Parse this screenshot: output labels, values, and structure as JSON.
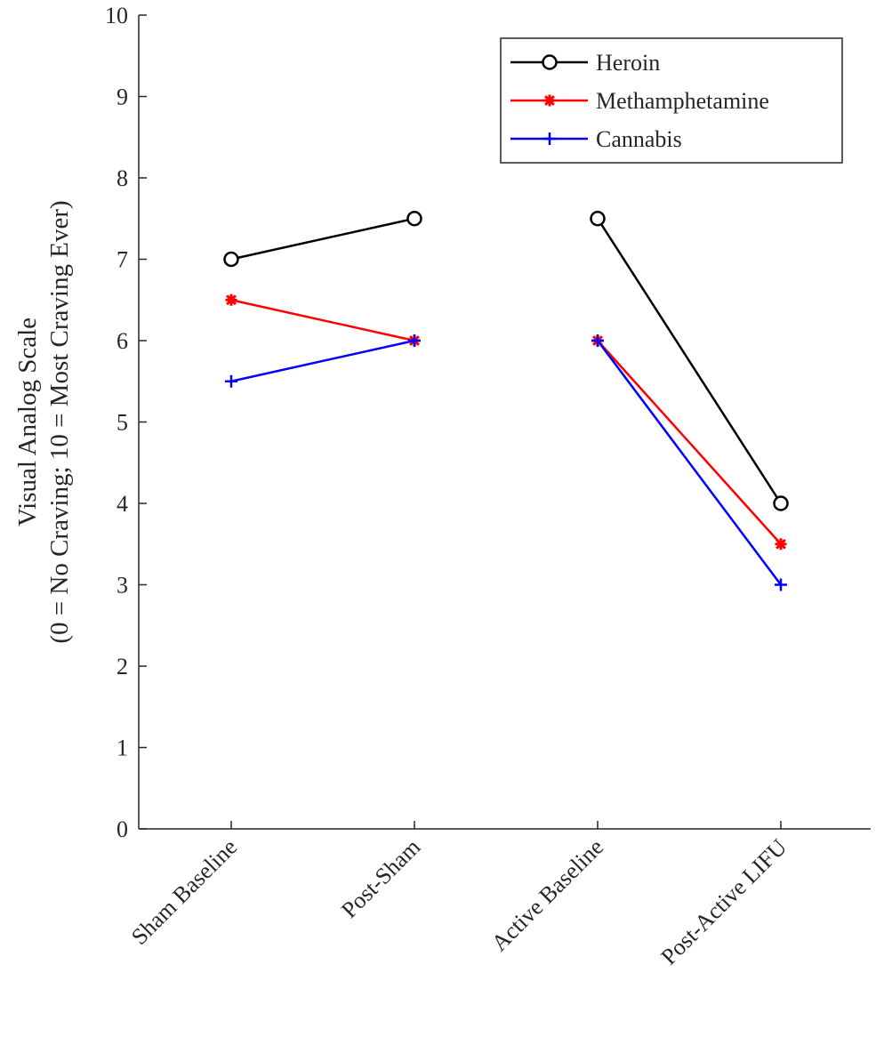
{
  "chart_data": {
    "type": "line",
    "title": "",
    "xlabel": "",
    "ylabel": [
      "Visual Analog Scale",
      "(0 = No Craving; 10 = Most Craving Ever)"
    ],
    "categories": [
      "Sham Baseline",
      "Post-Sham",
      "Active Baseline",
      "Post-Active LIFU"
    ],
    "ylim": [
      0,
      10
    ],
    "yticks": [
      0,
      1,
      2,
      3,
      4,
      5,
      6,
      7,
      8,
      9,
      10
    ],
    "grid": false,
    "legend_position": "top-right",
    "segments": [
      [
        0,
        1
      ],
      [
        2,
        3
      ]
    ],
    "series": [
      {
        "name": "Heroin",
        "values": [
          7,
          7.5,
          7.5,
          4
        ],
        "color": "#000000",
        "marker": "circle"
      },
      {
        "name": "Methamphetamine",
        "values": [
          6.5,
          6,
          6,
          3.5
        ],
        "color": "#ff0000",
        "marker": "asterisk"
      },
      {
        "name": "Cannabis",
        "values": [
          5.5,
          6,
          6,
          3
        ],
        "color": "#0000ff",
        "marker": "plus"
      }
    ]
  }
}
